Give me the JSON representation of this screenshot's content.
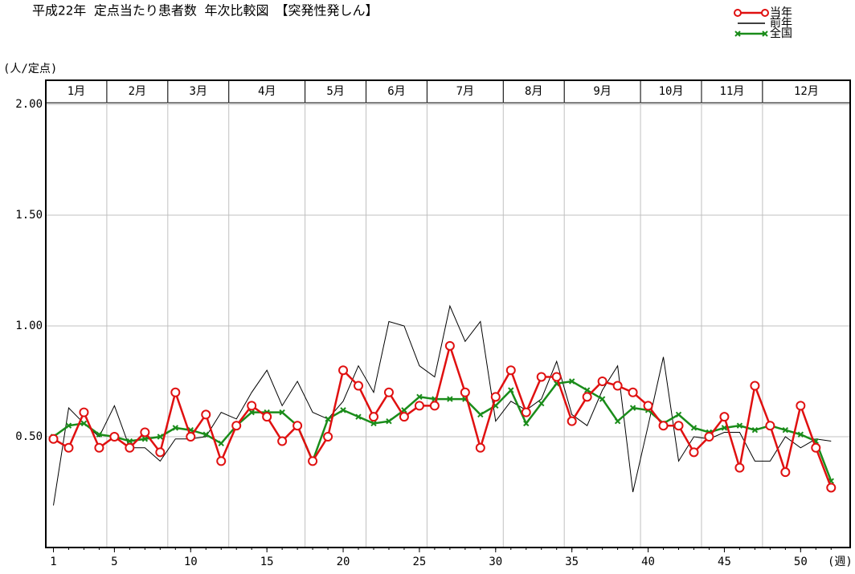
{
  "chart_data": {
    "type": "line",
    "title": "平成22年 定点当たり患者数 年次比較図　【突発性発しん】",
    "y_label": "(人/定点)",
    "x_label": "(週)",
    "x": [
      1,
      2,
      3,
      4,
      5,
      6,
      7,
      8,
      9,
      10,
      11,
      12,
      13,
      14,
      15,
      16,
      17,
      18,
      19,
      20,
      21,
      22,
      23,
      24,
      25,
      26,
      27,
      28,
      29,
      30,
      31,
      32,
      33,
      34,
      35,
      36,
      37,
      38,
      39,
      40,
      41,
      42,
      43,
      44,
      45,
      46,
      47,
      48,
      49,
      50,
      51,
      52
    ],
    "xlim": [
      0.5,
      53.25
    ],
    "xticks": [
      1,
      5,
      10,
      15,
      20,
      25,
      30,
      35,
      40,
      45,
      50
    ],
    "ylim": [
      0,
      2
    ],
    "yticks": [
      {
        "value": 0.5,
        "label": "0.50"
      },
      {
        "value": 1,
        "label": "1.00"
      },
      {
        "value": 1.5,
        "label": "1.50"
      },
      {
        "value": 2,
        "label": "2.00"
      }
    ],
    "months": [
      "1月",
      "2月",
      "3月",
      "4月",
      "5月",
      "6月",
      "7月",
      "8月",
      "9月",
      "10月",
      "11月",
      "12月"
    ],
    "month_bounds": [
      4.5,
      8.5,
      12.5,
      17.5,
      21.5,
      25.5,
      30.5,
      34.5,
      39.5,
      43.5,
      47.5
    ],
    "grid": true,
    "series": [
      {
        "name": "前年",
        "color": "#000000",
        "marker": "none",
        "values": [
          0.19,
          0.63,
          0.56,
          0.5,
          0.64,
          0.45,
          0.45,
          0.39,
          0.49,
          0.49,
          0.5,
          0.61,
          0.58,
          0.7,
          0.8,
          0.64,
          0.75,
          0.61,
          0.58,
          0.66,
          0.82,
          0.7,
          1.02,
          1.0,
          0.82,
          0.77,
          1.09,
          0.93,
          1.02,
          0.57,
          0.66,
          0.62,
          0.67,
          0.84,
          0.6,
          0.55,
          0.71,
          0.82,
          0.25,
          0.55,
          0.86,
          0.39,
          0.5,
          0.49,
          0.52,
          0.52,
          0.39,
          0.39,
          0.5,
          0.45,
          0.49,
          0.48
        ]
      },
      {
        "name": "全国",
        "color": "#1a8c1a",
        "marker": "x",
        "values": [
          0.5,
          0.55,
          0.56,
          0.51,
          0.5,
          0.48,
          0.49,
          0.5,
          0.54,
          0.53,
          0.51,
          0.47,
          0.55,
          0.61,
          0.61,
          0.61,
          0.55,
          0.39,
          0.58,
          0.62,
          0.59,
          0.56,
          0.57,
          0.62,
          0.68,
          0.67,
          0.67,
          0.67,
          0.6,
          0.64,
          0.71,
          0.56,
          0.65,
          0.74,
          0.75,
          0.71,
          0.67,
          0.57,
          0.63,
          0.62,
          0.56,
          0.6,
          0.54,
          0.52,
          0.54,
          0.55,
          0.53,
          0.55,
          0.53,
          0.51,
          0.48,
          0.3
        ]
      },
      {
        "name": "当年",
        "color": "#e01010",
        "marker": "circle",
        "values": [
          0.49,
          0.45,
          0.61,
          0.45,
          0.5,
          0.45,
          0.52,
          0.43,
          0.7,
          0.5,
          0.6,
          0.39,
          0.55,
          0.64,
          0.59,
          0.48,
          0.55,
          0.39,
          0.5,
          0.8,
          0.73,
          0.59,
          0.7,
          0.59,
          0.64,
          0.64,
          0.91,
          0.7,
          0.45,
          0.68,
          0.8,
          0.61,
          0.77,
          0.77,
          0.57,
          0.68,
          0.75,
          0.73,
          0.7,
          0.64,
          0.55,
          0.55,
          0.43,
          0.5,
          0.59,
          0.36,
          0.73,
          0.55,
          0.34,
          0.64,
          0.45,
          0.27
        ]
      }
    ]
  }
}
